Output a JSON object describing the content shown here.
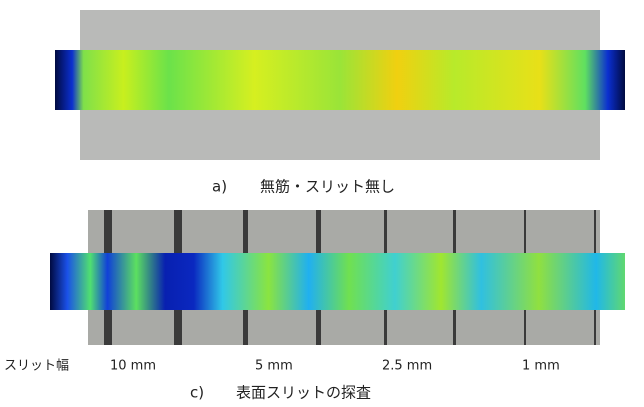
{
  "panels": [
    {
      "label": "a)",
      "caption": "無筋・スリット無し"
    },
    {
      "label": "c)",
      "caption": "表面スリットの探査",
      "slit_label": "スリット幅",
      "slit_widths": [
        "10 mm",
        "5 mm",
        "2.5 mm",
        "1 mm"
      ]
    }
  ]
}
